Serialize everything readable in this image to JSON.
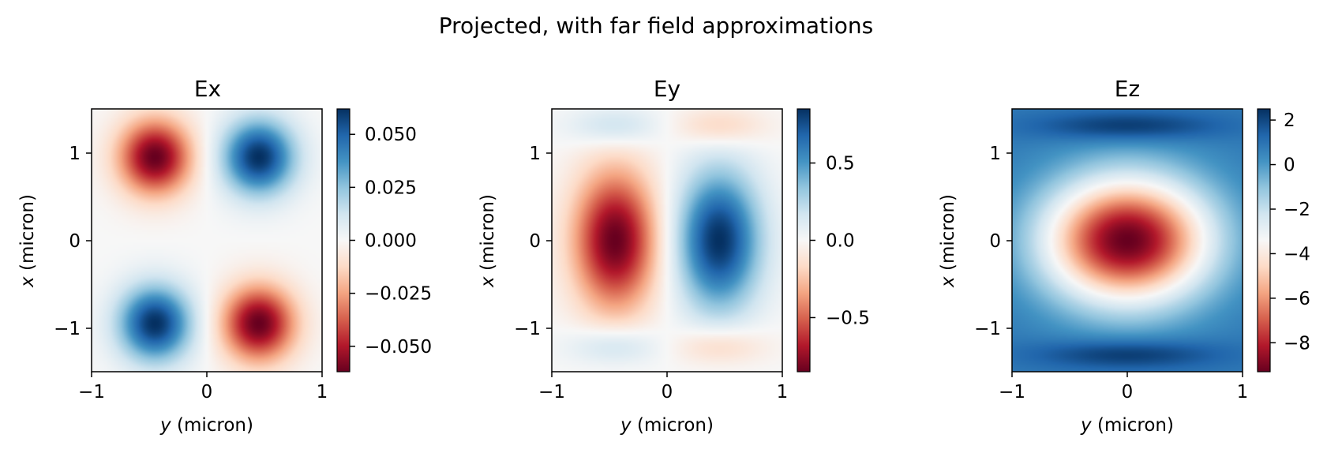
{
  "figure": {
    "suptitle": "Projected, with far field approximations"
  },
  "chart_data": [
    {
      "type": "heatmap",
      "title": "Ex",
      "xlabel": {
        "var": "y",
        "unit": " (micron)"
      },
      "ylabel": {
        "var": "x",
        "unit": " (micron)"
      },
      "xlim": [
        -1,
        1
      ],
      "ylim": [
        -1.5,
        1.5
      ],
      "xticks": [
        -1,
        0,
        1
      ],
      "xticklabels": [
        "−1",
        "0",
        "1"
      ],
      "yticks": [
        1,
        0,
        -1
      ],
      "yticklabels": [
        "1",
        "0",
        "−1"
      ],
      "colormap": "RdBu",
      "colorbar": {
        "min": -0.062,
        "max": 0.062,
        "ticks": [
          0.05,
          0.025,
          0.0,
          -0.025,
          -0.05
        ],
        "ticklabels": [
          "0.050",
          "0.025",
          "0.000",
          "−0.025",
          "−0.050"
        ]
      },
      "features": [
        {
          "x": -0.45,
          "y": 0.95,
          "sx": 0.22,
          "sy": 0.3,
          "value": -0.062
        },
        {
          "x": 0.45,
          "y": 0.95,
          "sx": 0.22,
          "sy": 0.3,
          "value": 0.062
        },
        {
          "x": -0.45,
          "y": -0.95,
          "sx": 0.22,
          "sy": 0.3,
          "value": 0.062
        },
        {
          "x": 0.45,
          "y": -0.95,
          "sx": 0.22,
          "sy": 0.3,
          "value": -0.062
        }
      ]
    },
    {
      "type": "heatmap",
      "title": "Ey",
      "xlabel": {
        "var": "y",
        "unit": " (micron)"
      },
      "ylabel": {
        "var": "x",
        "unit": " (micron)"
      },
      "xlim": [
        -1,
        1
      ],
      "ylim": [
        -1.5,
        1.5
      ],
      "xticks": [
        -1,
        0,
        1
      ],
      "xticklabels": [
        "−1",
        "0",
        "1"
      ],
      "yticks": [
        1,
        0,
        -1
      ],
      "yticklabels": [
        "1",
        "0",
        "−1"
      ],
      "colormap": "RdBu",
      "colorbar": {
        "min": -0.85,
        "max": 0.85,
        "ticks": [
          0.5,
          0.0,
          -0.5
        ],
        "ticklabels": [
          "0.5",
          "0.0",
          "−0.5"
        ]
      },
      "features": [
        {
          "x": -0.45,
          "y": 0.0,
          "sx": 0.25,
          "sy": 0.55,
          "value": -0.85
        },
        {
          "x": 0.45,
          "y": 0.0,
          "sx": 0.25,
          "sy": 0.55,
          "value": 0.85
        },
        {
          "x": -0.45,
          "y": 1.3,
          "sx": 0.28,
          "sy": 0.16,
          "value": 0.2
        },
        {
          "x": 0.45,
          "y": 1.3,
          "sx": 0.28,
          "sy": 0.16,
          "value": -0.2
        },
        {
          "x": -0.45,
          "y": -1.2,
          "sx": 0.28,
          "sy": 0.16,
          "value": 0.2
        },
        {
          "x": 0.45,
          "y": -1.2,
          "sx": 0.28,
          "sy": 0.16,
          "value": -0.2
        }
      ]
    },
    {
      "type": "heatmap",
      "title": "Ez",
      "xlabel": {
        "var": "y",
        "unit": " (micron)"
      },
      "ylabel": {
        "var": "x",
        "unit": " (micron)"
      },
      "xlim": [
        -1,
        1
      ],
      "ylim": [
        -1.5,
        1.5
      ],
      "xticks": [
        -1,
        0,
        1
      ],
      "xticklabels": [
        "−1",
        "0",
        "1"
      ],
      "yticks": [
        1,
        0,
        -1
      ],
      "yticklabels": [
        "1",
        "0",
        "−1"
      ],
      "colormap": "RdBu",
      "colorbar": {
        "min": -9.3,
        "max": 2.5,
        "ticks": [
          2,
          0,
          -2,
          -4,
          -6,
          -8
        ],
        "ticklabels": [
          "2",
          "0",
          "−2",
          "−4",
          "−6",
          "−8"
        ]
      },
      "field": {
        "center": [
          0,
          0
        ],
        "peak": -9.3,
        "core_width": 0.5,
        "baseline": 0.8,
        "edge_max": 2.5,
        "edge_y": 1.3
      }
    }
  ]
}
